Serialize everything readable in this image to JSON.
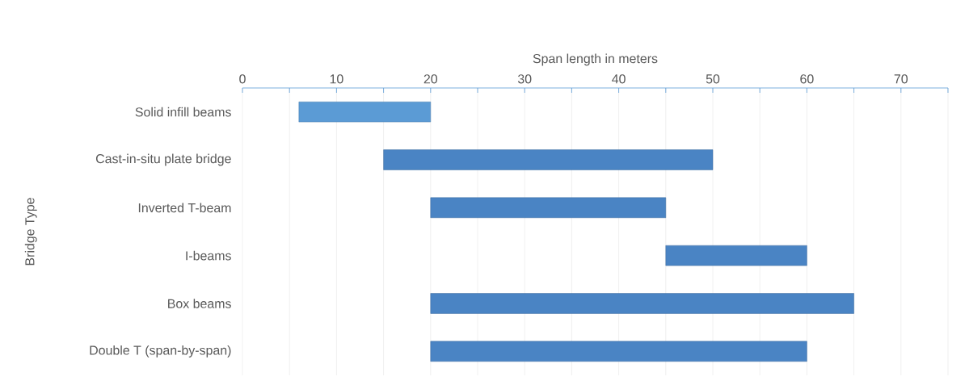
{
  "chart_data": {
    "type": "bar",
    "orientation": "horizontal",
    "xlabel": "Span length in meters",
    "ylabel": "Bridge Type",
    "categories": [
      "Solid infill beams",
      "Cast-in-situ plate bridge",
      "Inverted T-beam",
      "I-beams",
      "Box beams",
      "Double T (span-by-span)"
    ],
    "base": [
      6,
      15,
      20,
      45,
      20,
      20
    ],
    "values": [
      14,
      35,
      25,
      15,
      45,
      40
    ],
    "colors": [
      "#5b9bd5",
      "#4a84c4",
      "#4a84c4",
      "#4a84c4",
      "#4a84c4",
      "#4a84c4"
    ],
    "xlim": [
      0,
      75
    ],
    "xticks": [
      0,
      {
        "value": 5,
        "label": null
      },
      10,
      {
        "value": 15,
        "label": null
      },
      20,
      {
        "value": 25,
        "label": null
      },
      30,
      {
        "value": 35,
        "label": null
      },
      40,
      {
        "value": 45,
        "label": null
      },
      50,
      {
        "value": 55,
        "label": null
      },
      60,
      {
        "value": 65,
        "label": null
      },
      70,
      {
        "value": 75,
        "label": null
      }
    ],
    "grid": true
  }
}
